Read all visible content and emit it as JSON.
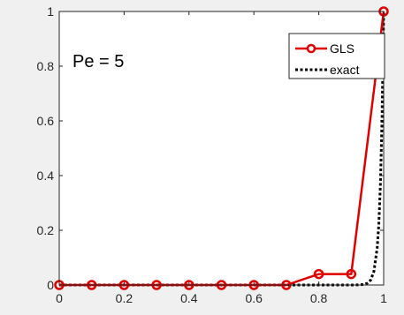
{
  "chart_data": {
    "type": "line",
    "annotation": "Pe = 5",
    "xlim": [
      0,
      1
    ],
    "ylim": [
      0,
      1
    ],
    "xticks": [
      "0",
      "0.2",
      "0.4",
      "0.6",
      "0.8",
      "1"
    ],
    "yticks": [
      "0",
      "0.2",
      "0.4",
      "0.6",
      "0.8",
      "1"
    ],
    "grid": false,
    "legend_position": "top-right",
    "series": [
      {
        "name": "GLS",
        "style": "solid line with circle markers",
        "color": "#e00000",
        "x": [
          0,
          0.1,
          0.2,
          0.3,
          0.4,
          0.5,
          0.6,
          0.7,
          0.8,
          0.9,
          1.0
        ],
        "y": [
          0,
          0,
          0,
          0,
          0,
          0,
          0,
          0,
          0.04,
          0.04,
          1.0
        ]
      },
      {
        "name": "exact",
        "style": "dotted line",
        "color": "#000000",
        "x": [
          0,
          0.9,
          0.92,
          0.94,
          0.95,
          0.96,
          0.97,
          0.98,
          0.985,
          0.99,
          0.995,
          1.0
        ],
        "y": [
          0,
          0,
          0.0003,
          0.002,
          0.007,
          0.018,
          0.05,
          0.135,
          0.22,
          0.37,
          0.61,
          1.0
        ]
      }
    ]
  }
}
